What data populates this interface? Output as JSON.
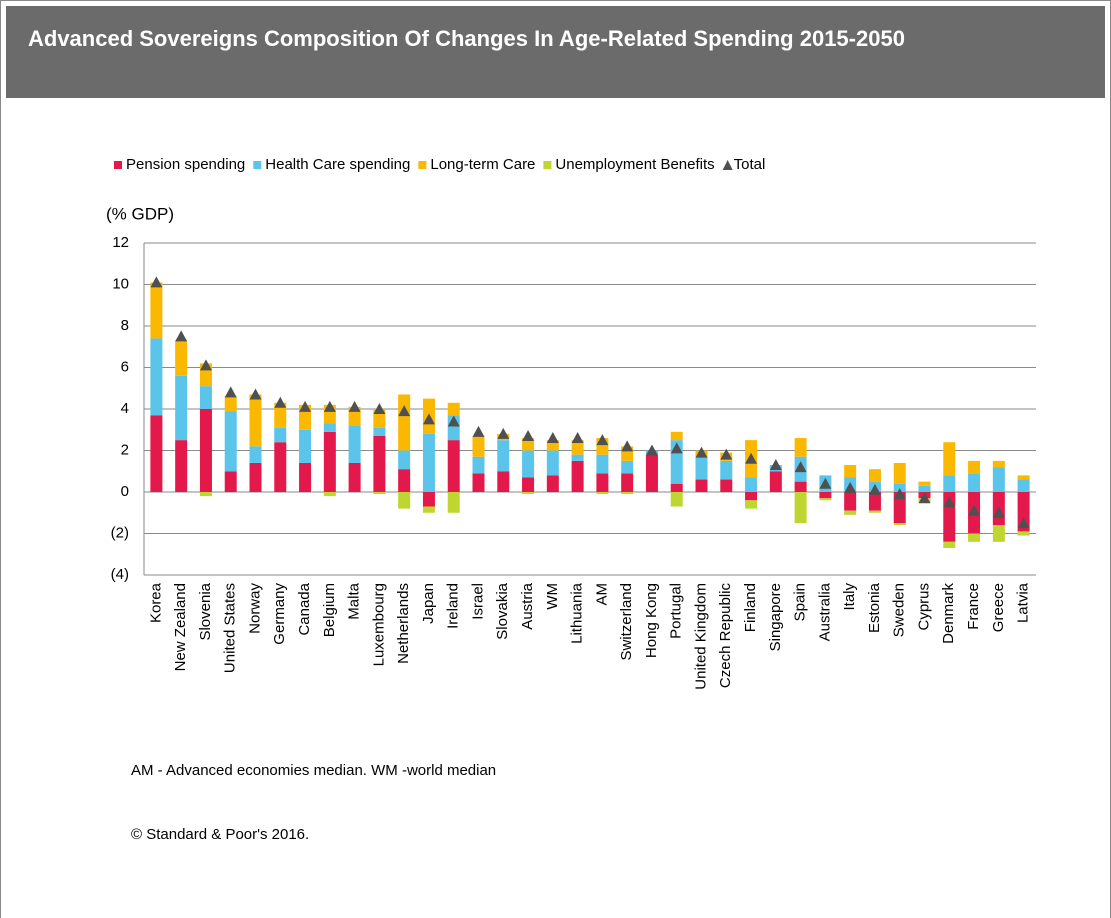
{
  "chart_data": {
    "type": "stacked_bar",
    "title": "Advanced Sovereigns Composition Of Changes In Age-Related Spending 2015-2050",
    "y_axis_label": "(% GDP)",
    "notes": [
      "AM - Advanced economies median. WM -world median",
      "© Standard & Poor's 2016."
    ],
    "categories": [
      "Korea",
      "New Zealand",
      "Slovenia",
      "United States",
      "Norway",
      "Germany",
      "Canada",
      "Belgium",
      "Malta",
      "Luxembourg",
      "Netherlands",
      "Japan",
      "Ireland",
      "Israel",
      "Slovakia",
      "Austria",
      "WM",
      "Lithuania",
      "AM",
      "Switzerland",
      "Hong Kong",
      "Portugal",
      "United Kingdom",
      "Czech Republic",
      "Finland",
      "Singapore",
      "Spain",
      "Australia",
      "Italy",
      "Estonia",
      "Sweden",
      "Cyprus",
      "Denmark",
      "France",
      "Greece",
      "Latvia"
    ],
    "series": [
      {
        "name": "Pension spending",
        "color": "#e3194b",
        "values": [
          3.7,
          2.5,
          4.0,
          1.0,
          1.4,
          2.4,
          1.4,
          2.9,
          1.4,
          2.7,
          1.1,
          -0.7,
          2.5,
          0.9,
          1.0,
          0.7,
          0.8,
          1.5,
          0.9,
          0.9,
          1.8,
          0.4,
          0.6,
          0.6,
          -0.4,
          1.0,
          0.5,
          -0.3,
          -0.9,
          -0.9,
          -1.5,
          -0.3,
          -2.4,
          -2.0,
          -1.6,
          -1.9
        ]
      },
      {
        "name": "Health Care spending",
        "color": "#5bc4ea",
        "values": [
          3.7,
          3.1,
          1.1,
          2.9,
          0.8,
          0.7,
          1.6,
          0.4,
          1.8,
          0.4,
          0.9,
          2.8,
          1.2,
          0.8,
          1.5,
          1.3,
          1.2,
          0.3,
          0.9,
          0.6,
          0.2,
          2.1,
          1.1,
          0.9,
          0.7,
          0.3,
          1.2,
          0.8,
          0.7,
          0.5,
          0.4,
          0.3,
          0.8,
          0.9,
          1.2,
          0.6
        ]
      },
      {
        "name": "Long-term Care",
        "color": "#fbb800",
        "values": [
          2.7,
          1.7,
          1.1,
          0.7,
          2.5,
          1.2,
          1.2,
          0.9,
          0.9,
          0.9,
          2.7,
          1.7,
          0.6,
          1.0,
          0.3,
          0.6,
          0.5,
          0.7,
          0.8,
          0.7,
          0,
          0.4,
          0.3,
          0.4,
          1.8,
          0,
          0.9,
          0,
          0.6,
          0.6,
          1.0,
          0.2,
          1.6,
          0.6,
          0.3,
          0.2
        ]
      },
      {
        "name": "Unemployment Benefits",
        "color": "#bed62f",
        "values": [
          0,
          0,
          -0.2,
          0,
          0,
          0,
          0,
          -0.2,
          0,
          -0.1,
          -0.8,
          -0.3,
          -1.0,
          0,
          0,
          -0.1,
          0,
          0,
          -0.1,
          -0.1,
          0,
          -0.7,
          0,
          0,
          -0.4,
          0,
          -1.5,
          -0.1,
          -0.2,
          -0.1,
          -0.1,
          -0.2,
          -0.3,
          -0.4,
          -0.8,
          -0.2
        ]
      },
      {
        "name": "Total",
        "color": "#505050",
        "marker": "triangle",
        "values": [
          10.1,
          7.5,
          6.1,
          4.8,
          4.7,
          4.3,
          4.1,
          4.1,
          4.1,
          4.0,
          3.9,
          3.5,
          3.4,
          2.9,
          2.8,
          2.7,
          2.6,
          2.6,
          2.5,
          2.2,
          2.0,
          2.1,
          1.9,
          1.8,
          1.6,
          1.3,
          1.2,
          0.4,
          0.2,
          0.1,
          -0.1,
          -0.3,
          -0.5,
          -0.9,
          -1.0,
          -1.5
        ]
      }
    ],
    "ylim": [
      -4,
      12
    ],
    "yticks": [
      {
        "value": -4,
        "label": "(4)"
      },
      {
        "value": -2,
        "label": "(2)"
      },
      0,
      2,
      4,
      6,
      8,
      10,
      12
    ],
    "grid": true,
    "legend": "top"
  }
}
